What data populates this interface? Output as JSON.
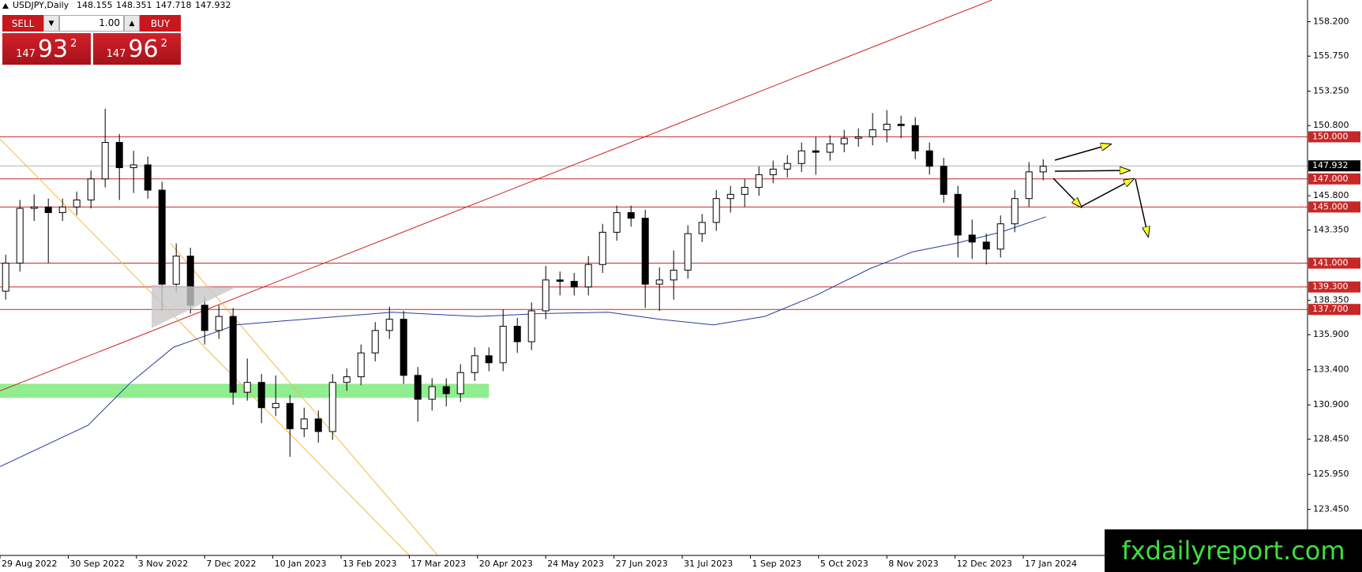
{
  "header": {
    "symbol": "USDJPY,Daily",
    "ohlc": [
      "148.155",
      "148.351",
      "147.718",
      "147.932"
    ]
  },
  "trade_panel": {
    "sell": "SELL",
    "buy": "BUY",
    "volume": "1.00",
    "sell_price": {
      "big": "147",
      "main": "93",
      "small": "2"
    },
    "buy_price": {
      "big": "147",
      "main": "96",
      "small": "2"
    }
  },
  "watermark": "fxdailyreport.com",
  "chart_data": {
    "type": "candlestick",
    "x": [
      2,
      7,
      12,
      17,
      22,
      27,
      32,
      37,
      42,
      47,
      52,
      57,
      62,
      67,
      72,
      77,
      82,
      87,
      92,
      97,
      102,
      107,
      112,
      117,
      122,
      127,
      132,
      137,
      142,
      147,
      152,
      157,
      162,
      167,
      172,
      177,
      182,
      187,
      192,
      197,
      202,
      207,
      212,
      217,
      222,
      227,
      232,
      237,
      242,
      247,
      252,
      257,
      262,
      267,
      272,
      277,
      282,
      287,
      292,
      297,
      302,
      307,
      312,
      317,
      322,
      327,
      332,
      337,
      342,
      347,
      352,
      357,
      362,
      367
    ],
    "open": [
      139.0,
      141.0,
      144.9,
      145.0,
      144.6,
      145.0,
      145.5,
      147.0,
      149.6,
      147.8,
      148.0,
      146.2,
      139.5,
      141.5,
      138.0,
      136.2,
      137.2,
      131.8,
      132.5,
      130.7,
      131.0,
      129.2,
      129.9,
      129.0,
      132.5,
      132.9,
      134.6,
      136.2,
      137.0,
      133.0,
      131.3,
      132.2,
      131.7,
      133.2,
      134.4,
      133.9,
      136.5,
      135.4,
      137.6,
      139.8,
      139.7,
      139.3,
      140.9,
      143.2,
      144.6,
      144.2,
      139.5,
      139.8,
      140.5,
      143.1,
      143.9,
      145.6,
      145.9,
      146.4,
      147.3,
      147.7,
      148.1,
      149.0,
      148.9,
      149.5,
      149.9,
      150.0,
      150.5,
      150.9,
      150.8,
      149.0,
      147.9,
      145.9,
      143.0,
      142.5,
      142.0,
      143.8,
      145.6,
      147.5
    ],
    "high": [
      141.6,
      145.5,
      145.9,
      145.6,
      145.6,
      146.1,
      147.6,
      152.0,
      150.2,
      149.0,
      148.6,
      146.8,
      142.4,
      142.1,
      138.6,
      138.0,
      137.8,
      134.2,
      133.1,
      133.0,
      131.6,
      130.7,
      130.5,
      133.1,
      133.5,
      135.2,
      136.8,
      137.9,
      137.6,
      133.6,
      132.8,
      132.8,
      133.8,
      135.0,
      135.0,
      137.7,
      137.1,
      138.2,
      140.8,
      140.4,
      140.3,
      141.5,
      143.8,
      145.1,
      145.1,
      144.8,
      140.7,
      141.9,
      143.7,
      144.5,
      146.2,
      146.5,
      147.0,
      147.9,
      148.3,
      148.7,
      149.6,
      150.0,
      150.1,
      150.5,
      150.6,
      151.7,
      151.9,
      151.5,
      151.4,
      149.6,
      148.5,
      146.5,
      144.1,
      143.1,
      144.4,
      146.2,
      148.2,
      148.4
    ],
    "low": [
      138.4,
      140.4,
      144.0,
      141.0,
      144.0,
      144.4,
      144.9,
      146.4,
      145.5,
      146.0,
      145.6,
      137.6,
      138.9,
      137.4,
      135.2,
      135.6,
      130.9,
      131.2,
      129.6,
      130.1,
      127.2,
      128.6,
      128.2,
      128.4,
      131.9,
      132.3,
      134.0,
      135.6,
      132.4,
      129.7,
      130.5,
      130.8,
      131.1,
      132.6,
      133.3,
      133.3,
      134.6,
      134.8,
      137.0,
      138.7,
      138.7,
      138.7,
      140.3,
      142.6,
      143.6,
      137.8,
      137.6,
      138.4,
      139.9,
      142.5,
      143.3,
      144.6,
      145.0,
      145.8,
      146.7,
      147.1,
      147.5,
      147.3,
      148.3,
      148.9,
      149.3,
      149.4,
      149.6,
      149.9,
      148.4,
      147.3,
      145.3,
      141.4,
      141.3,
      140.9,
      141.4,
      143.2,
      145.0,
      146.9
    ],
    "close": [
      141.0,
      144.9,
      145.0,
      144.6,
      145.0,
      145.5,
      147.0,
      149.6,
      147.8,
      148.0,
      146.2,
      139.5,
      141.5,
      138.0,
      136.2,
      137.2,
      131.8,
      132.5,
      130.7,
      131.0,
      129.2,
      129.9,
      129.0,
      132.5,
      132.9,
      134.6,
      136.2,
      137.0,
      133.0,
      131.3,
      132.2,
      131.7,
      133.2,
      134.4,
      133.9,
      136.5,
      135.4,
      137.6,
      139.8,
      139.7,
      139.3,
      140.9,
      143.2,
      144.6,
      144.2,
      139.5,
      139.8,
      140.5,
      143.1,
      143.9,
      145.6,
      145.9,
      146.4,
      147.3,
      147.7,
      148.1,
      149.0,
      148.9,
      149.5,
      149.9,
      150.0,
      150.5,
      150.9,
      150.8,
      149.0,
      147.9,
      145.9,
      143.0,
      142.5,
      142.0,
      143.8,
      145.6,
      147.5,
      147.9
    ],
    "up_color": "#ffffff",
    "down_color": "#000000",
    "wick_color": "#000000",
    "xlim": [
      0,
      460
    ],
    "ylim": [
      120.17,
      159.75
    ],
    "xticks": [
      {
        "value": 0,
        "label": "29 Aug 2022"
      },
      {
        "value": 24,
        "label": "30 Sep 2022"
      },
      {
        "value": 48,
        "label": "3 Nov 2022"
      },
      {
        "value": 72,
        "label": "7 Dec 2022"
      },
      {
        "value": 96,
        "label": "10 Jan 2023"
      },
      {
        "value": 120,
        "label": "13 Feb 2023"
      },
      {
        "value": 144,
        "label": "17 Mar 2023"
      },
      {
        "value": 168,
        "label": "20 Apr 2023"
      },
      {
        "value": 192,
        "label": "24 May 2023"
      },
      {
        "value": 216,
        "label": "27 Jun 2023"
      },
      {
        "value": 240,
        "label": "31 Jul 2023"
      },
      {
        "value": 264,
        "label": "1 Sep 2023"
      },
      {
        "value": 288,
        "label": "5 Oct 2023"
      },
      {
        "value": 312,
        "label": "8 Nov 2023"
      },
      {
        "value": 336,
        "label": "12 Dec 2023"
      },
      {
        "value": 360,
        "label": "17 Jan 2024"
      }
    ],
    "yticks": [
      {
        "value": 158.2,
        "label": "158.200"
      },
      {
        "value": 155.75,
        "label": "155.750"
      },
      {
        "value": 153.25,
        "label": "153.250"
      },
      {
        "value": 150.8,
        "label": "150.800"
      },
      {
        "value": 145.8,
        "label": "145.800"
      },
      {
        "value": 143.35,
        "label": "143.350"
      },
      {
        "value": 138.35,
        "label": "138.350"
      },
      {
        "value": 135.9,
        "label": "135.900"
      },
      {
        "value": 133.4,
        "label": "133.400"
      },
      {
        "value": 130.9,
        "label": "130.900"
      },
      {
        "value": 128.45,
        "label": "128.450"
      },
      {
        "value": 125.95,
        "label": "125.950"
      },
      {
        "value": 123.45,
        "label": "123.450"
      }
    ],
    "levels": [
      {
        "value": 150,
        "label": "150.000"
      },
      {
        "value": 147,
        "label": "147.000"
      },
      {
        "value": 145,
        "label": "145.000"
      },
      {
        "value": 141,
        "label": "141.000"
      },
      {
        "value": 139.3,
        "label": "139.300"
      },
      {
        "value": 137.7,
        "label": "137.700"
      }
    ],
    "level_color": "#c62828",
    "current_price": {
      "value": 147.932,
      "label": "147.932"
    },
    "moving_average": {
      "color": "#2b3a9c",
      "x": [
        0,
        31,
        46,
        61,
        83,
        101,
        138,
        168,
        190,
        214,
        232,
        251,
        269,
        287,
        306,
        321,
        336,
        352,
        368
      ],
      "values": [
        126.5,
        129.45,
        132.5,
        135.0,
        136.6,
        136.9,
        137.5,
        137.2,
        137.4,
        137.5,
        137.0,
        136.6,
        137.2,
        138.7,
        140.6,
        141.8,
        142.4,
        143.2,
        144.3
      ]
    },
    "trendlines": [
      {
        "color": "#d02020",
        "x": [
          0,
          349
        ],
        "values": [
          131.9,
          159.75
        ]
      },
      {
        "color": "#f4b942",
        "x": [
          0,
          144
        ],
        "values": [
          149.85,
          120.17
        ]
      },
      {
        "color": "#f4b942",
        "x": [
          60,
          154
        ],
        "values": [
          142.4,
          120.17
        ]
      }
    ],
    "zone": {
      "color": "#90ee90",
      "x": [
        0,
        172
      ],
      "values": [
        131.4,
        132.4
      ]
    }
  }
}
